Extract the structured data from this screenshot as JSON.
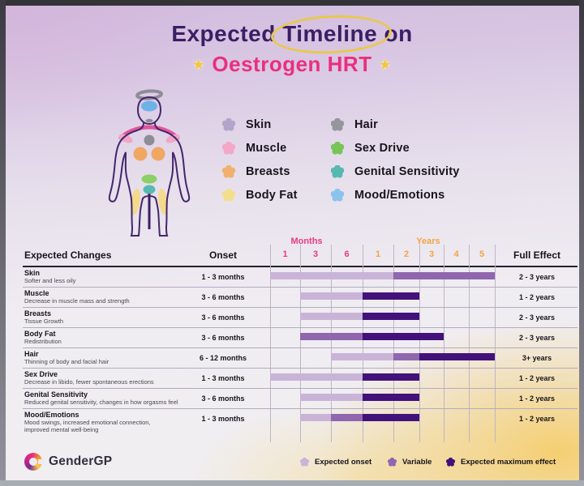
{
  "title": {
    "part1": "Expected",
    "part2": "Timeline",
    "part3": "on",
    "star_left": "★",
    "star_right": "★",
    "subtitle": "Oestrogen HRT"
  },
  "body_legend": {
    "left": [
      {
        "label": "Skin",
        "color": "#b3a5c9"
      },
      {
        "label": "Muscle",
        "color": "#f2a8c6"
      },
      {
        "label": "Breasts",
        "color": "#f2b06e"
      },
      {
        "label": "Body Fat",
        "color": "#f2df8e"
      }
    ],
    "right": [
      {
        "label": "Hair",
        "color": "#96959d"
      },
      {
        "label": "Sex Drive",
        "color": "#77c556"
      },
      {
        "label": "Genital Sensitivity",
        "color": "#56b9b1"
      },
      {
        "label": "Mood/Emotions",
        "color": "#8cc3ee"
      }
    ]
  },
  "table": {
    "col_expected_changes": "Expected Changes",
    "col_onset": "Onset",
    "col_full_effect": "Full Effect",
    "months_label": "Months",
    "years_label": "Years",
    "month_ticks": [
      "1",
      "3",
      "6"
    ],
    "year_ticks": [
      "1",
      "2",
      "3",
      "4",
      "5"
    ]
  },
  "chart_data": {
    "type": "gantt",
    "title": "Expected Timeline on Oestrogen HRT",
    "x_axis": {
      "months_label": "Months",
      "years_label": "Years",
      "month_ticks": [
        "1",
        "3",
        "6"
      ],
      "year_ticks": [
        "1",
        "2",
        "3",
        "4",
        "5"
      ],
      "column_boundaries_units": [
        "start",
        "1 month",
        "3 months",
        "6 months",
        "1 year",
        "2 years",
        "3 years",
        "4 years",
        "5 years"
      ]
    },
    "legend": [
      {
        "label": "Expected onset",
        "type": "onset"
      },
      {
        "label": "Variable",
        "type": "variable"
      },
      {
        "label": "Expected maximum effect",
        "type": "max"
      }
    ],
    "rows": [
      {
        "name": "Skin",
        "description": "Softer and less oily",
        "onset": "1 - 3 months",
        "full_effect": "2 - 3 years",
        "segments": [
          {
            "type": "onset",
            "from": 0,
            "to": 4
          },
          {
            "type": "variable",
            "from": 4,
            "to": 8
          }
        ]
      },
      {
        "name": "Muscle",
        "description": "Decrease in muscle mass and strength",
        "onset": "3 - 6 months",
        "full_effect": "1 - 2 years",
        "segments": [
          {
            "type": "onset",
            "from": 1,
            "to": 3
          },
          {
            "type": "max",
            "from": 3,
            "to": 5
          }
        ]
      },
      {
        "name": "Breasts",
        "description": "Tissue Growth",
        "onset": "3 - 6 months",
        "full_effect": "2 - 3 years",
        "segments": [
          {
            "type": "onset",
            "from": 1,
            "to": 3
          },
          {
            "type": "max",
            "from": 3,
            "to": 5
          }
        ]
      },
      {
        "name": "Body Fat",
        "description": "Redistribution",
        "onset": "3 - 6 months",
        "full_effect": "2 - 3 years",
        "segments": [
          {
            "type": "variable",
            "from": 1,
            "to": 3
          },
          {
            "type": "max",
            "from": 3,
            "to": 6
          }
        ]
      },
      {
        "name": "Hair",
        "description": "Thinning of body and facial hair",
        "onset": "6 - 12 months",
        "full_effect": "3+ years",
        "segments": [
          {
            "type": "onset",
            "from": 2,
            "to": 4
          },
          {
            "type": "variable",
            "from": 4,
            "to": 5
          },
          {
            "type": "max",
            "from": 5,
            "to": 8
          }
        ]
      },
      {
        "name": "Sex Drive",
        "description": "Decrease in libido, fewer spontaneous erections",
        "onset": "1 - 3 months",
        "full_effect": "1 - 2 years",
        "segments": [
          {
            "type": "onset",
            "from": 0,
            "to": 3
          },
          {
            "type": "max",
            "from": 3,
            "to": 5
          }
        ]
      },
      {
        "name": "Genital Sensitivity",
        "description": "Reduced genital sensitivity, changes in how orgasms feel",
        "onset": "3 - 6 months",
        "full_effect": "1 - 2 years",
        "segments": [
          {
            "type": "onset",
            "from": 1,
            "to": 3
          },
          {
            "type": "max",
            "from": 3,
            "to": 5
          }
        ]
      },
      {
        "name": "Mood/Emotions",
        "description": "Mood swings, increased emotional connection,\nimproved mental well-being",
        "onset": "1 - 3 months",
        "full_effect": "1 - 2 years",
        "segments": [
          {
            "type": "onset",
            "from": 1,
            "to": 2
          },
          {
            "type": "variable",
            "from": 2,
            "to": 3
          },
          {
            "type": "max",
            "from": 3,
            "to": 5
          }
        ]
      }
    ]
  },
  "colors": {
    "segments": {
      "onset": "#c9b4d8",
      "variable": "#9066ae",
      "max": "#42117a"
    },
    "months_accent": "#e83a80",
    "years_accent": "#f2a445",
    "title_purple": "#3b1e63",
    "subtitle_pink": "#ea2f7c"
  },
  "footer": {
    "brand": "GenderGP"
  }
}
